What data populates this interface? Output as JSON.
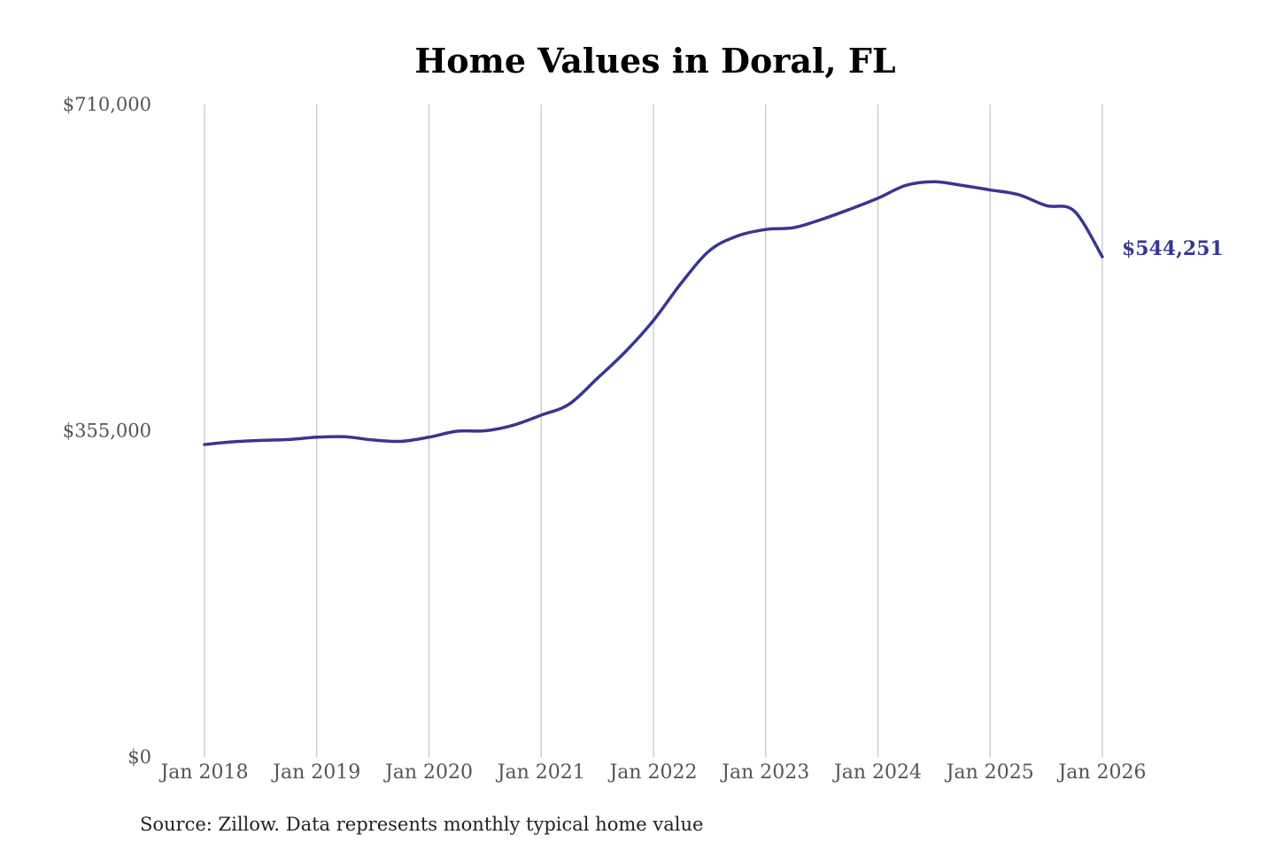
{
  "chart_data": {
    "type": "line",
    "title": "Home Values in Doral, FL",
    "source": "Source: Zillow. Data represents monthly typical home value",
    "x_ticks": [
      "Jan 2018",
      "Jan 2019",
      "Jan 2020",
      "Jan 2021",
      "Jan 2022",
      "Jan 2023",
      "Jan 2024",
      "Jan 2025",
      "Jan 2026"
    ],
    "y_ticks": [
      {
        "value": 710000,
        "label": "$710,000"
      },
      {
        "value": 355000,
        "label": "$355,000"
      },
      {
        "value": 0,
        "label": "$0"
      }
    ],
    "ylim": [
      0,
      710000
    ],
    "xlim": [
      "2018-01",
      "2026-01"
    ],
    "grid": "vertical",
    "line_color": "#3a3591",
    "end_label": "$544,251",
    "series": [
      {
        "x": [
          "2018-01",
          "2018-04",
          "2018-07",
          "2018-10",
          "2019-01",
          "2019-04",
          "2019-07",
          "2019-10",
          "2020-01",
          "2020-04",
          "2020-07",
          "2020-10",
          "2021-01",
          "2021-04",
          "2021-07",
          "2021-10",
          "2022-01",
          "2022-04",
          "2022-07",
          "2022-10",
          "2023-01",
          "2023-04",
          "2023-07",
          "2023-10",
          "2024-01",
          "2024-04",
          "2024-07",
          "2024-10",
          "2025-01",
          "2025-04",
          "2025-07",
          "2025-10",
          "2026-01"
        ],
        "values": [
          340000,
          343000,
          344500,
          345500,
          348000,
          348500,
          345000,
          343500,
          348000,
          354500,
          355000,
          361000,
          372000,
          384000,
          412000,
          441000,
          475000,
          516000,
          551000,
          567000,
          574000,
          576000,
          585000,
          596000,
          608000,
          622000,
          626000,
          622000,
          617000,
          612000,
          600000,
          594000,
          544251
        ]
      }
    ]
  }
}
